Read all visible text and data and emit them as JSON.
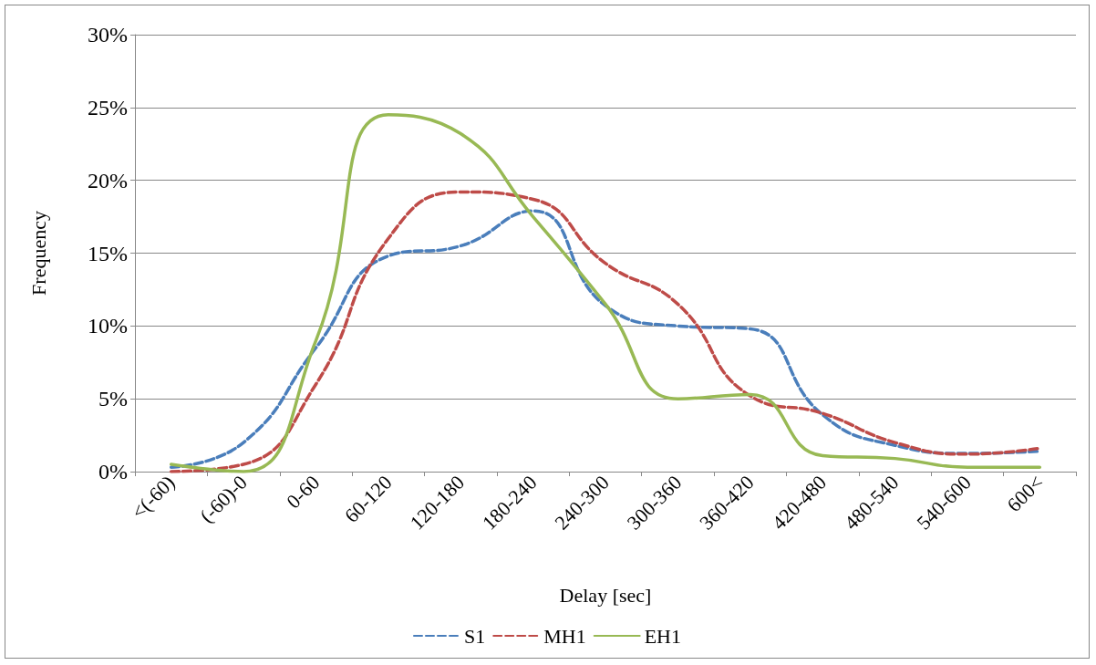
{
  "chart_data": {
    "type": "line",
    "xlabel": "Delay [sec]",
    "ylabel": "Frequency",
    "categories": [
      "<(-60)",
      "(-60)-0",
      "0-60",
      "60-120",
      "120-180",
      "180-240",
      "240-300",
      "300-360",
      "360-420",
      "420-480",
      "480-540",
      "540-600",
      "600<"
    ],
    "series": [
      {
        "name": "S1",
        "color": "#4a7ebb",
        "line_style": "dashed",
        "values": [
          0.3,
          2,
          8.5,
          14.8,
          15.5,
          17.9,
          11.4,
          10,
          9.8,
          3.9,
          1.8,
          1.25,
          1.4
        ]
      },
      {
        "name": "MH1",
        "color": "#be4b48",
        "line_style": "dashed",
        "values": [
          0,
          0.5,
          6,
          16,
          19.2,
          18.7,
          14.3,
          11.5,
          5.2,
          4,
          2,
          1.2,
          1.6
        ]
      },
      {
        "name": "EH1",
        "color": "#98b954",
        "line_style": "solid",
        "values": [
          0.5,
          0,
          9,
          24.5,
          23.2,
          17.5,
          11.5,
          5,
          5.3,
          1.1,
          0.9,
          0.3,
          0.3
        ]
      }
    ],
    "ylim": [
      0,
      30
    ],
    "yticks": [
      {
        "value": 0,
        "label": "0%"
      },
      {
        "value": 5,
        "label": "5%"
      },
      {
        "value": 10,
        "label": "10%"
      },
      {
        "value": 15,
        "label": "15%"
      },
      {
        "value": 20,
        "label": "20%"
      },
      {
        "value": 25,
        "label": "25%"
      },
      {
        "value": 30,
        "label": "30%"
      }
    ],
    "grid": "y",
    "legend": "bottom",
    "marker": "none"
  }
}
